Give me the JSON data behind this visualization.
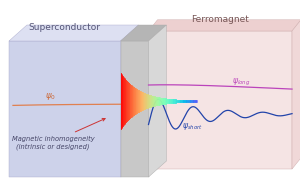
{
  "title_left": "Superconductor",
  "title_right": "Ferromagnet",
  "annotation_left": "Magnetic inhomogeneity\n(intrinsic or designed)",
  "sc_face_color": "#cdd2ea",
  "sc_top_color": "#dde0f2",
  "sc_side_color": "#e2e4f2",
  "fm_face_color": "#f5e4e4",
  "fm_top_color": "#edd0d0",
  "fm_side_color": "#f0d8d8",
  "interface_color": "#c8c8c8",
  "interface_top_color": "#b5b5b5",
  "psi0_color": "#e08050",
  "psi0_label_color": "#cc6633",
  "annot_color": "#444466",
  "arrow_color": "#cc3333",
  "psi_long_color": "#bb44bb",
  "psi_short_color": "#2244aa",
  "label_sc_color": "#555577",
  "label_fm_color": "#775555"
}
